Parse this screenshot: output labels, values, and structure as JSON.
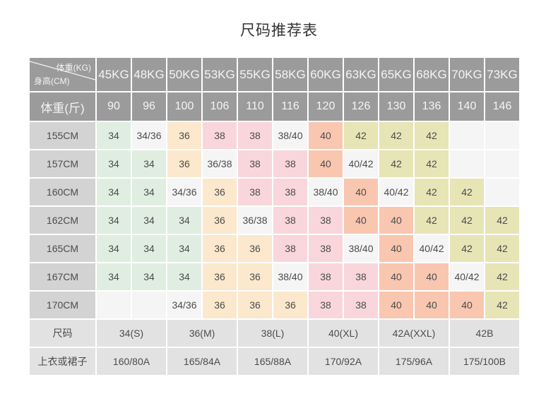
{
  "title": "尺码推荐表",
  "colors": {
    "title_text": "#333333",
    "header_bg": "#9b9b9b",
    "header_text": "#f4f4f4",
    "row_label_bg": "#d3d3d3",
    "footer_bg": "#e2e2e2",
    "cell_text": "#4c4c4c",
    "green": "#dfeee1",
    "cream": "#fbe8cd",
    "pink": "#f9d6dc",
    "salmon": "#f9c6b0",
    "khaki": "#e7e4b6",
    "plain": "#f5f5f5"
  },
  "chart_data": {
    "type": "table",
    "title": "尺码推荐表",
    "corner_top": "体重(KG)",
    "corner_bottom": "身高(CM)",
    "weight_jin_label": "体重(斤)",
    "columns_kg": [
      "45KG",
      "48KG",
      "50KG",
      "53KG",
      "55KG",
      "58KG",
      "60KG",
      "63KG",
      "65KG",
      "68KG",
      "70KG",
      "73KG"
    ],
    "columns_jin": [
      "90",
      "96",
      "100",
      "106",
      "110",
      "116",
      "120",
      "126",
      "130",
      "136",
      "140",
      "146"
    ],
    "rows": [
      {
        "label": "155CM",
        "cells": [
          {
            "v": "34",
            "c": "green"
          },
          {
            "v": "34/36",
            "c": "plain"
          },
          {
            "v": "36",
            "c": "cream"
          },
          {
            "v": "38",
            "c": "pink"
          },
          {
            "v": "38",
            "c": "pink"
          },
          {
            "v": "38/40",
            "c": "plain"
          },
          {
            "v": "40",
            "c": "salmon"
          },
          {
            "v": "42",
            "c": "khaki"
          },
          {
            "v": "42",
            "c": "khaki"
          },
          {
            "v": "42",
            "c": "khaki"
          },
          {
            "v": "",
            "c": "plain"
          },
          {
            "v": "",
            "c": "plain"
          }
        ]
      },
      {
        "label": "157CM",
        "cells": [
          {
            "v": "34",
            "c": "green"
          },
          {
            "v": "34",
            "c": "green"
          },
          {
            "v": "36",
            "c": "cream"
          },
          {
            "v": "36/38",
            "c": "plain"
          },
          {
            "v": "38",
            "c": "pink"
          },
          {
            "v": "38",
            "c": "pink"
          },
          {
            "v": "40",
            "c": "salmon"
          },
          {
            "v": "40/42",
            "c": "plain"
          },
          {
            "v": "42",
            "c": "khaki"
          },
          {
            "v": "42",
            "c": "khaki"
          },
          {
            "v": "",
            "c": "plain"
          },
          {
            "v": "",
            "c": "plain"
          }
        ]
      },
      {
        "label": "160CM",
        "cells": [
          {
            "v": "34",
            "c": "green"
          },
          {
            "v": "34",
            "c": "green"
          },
          {
            "v": "34/36",
            "c": "plain"
          },
          {
            "v": "36",
            "c": "cream"
          },
          {
            "v": "38",
            "c": "pink"
          },
          {
            "v": "38",
            "c": "pink"
          },
          {
            "v": "38/40",
            "c": "plain"
          },
          {
            "v": "40",
            "c": "salmon"
          },
          {
            "v": "40/42",
            "c": "plain"
          },
          {
            "v": "42",
            "c": "khaki"
          },
          {
            "v": "42",
            "c": "khaki"
          },
          {
            "v": "",
            "c": "plain"
          }
        ]
      },
      {
        "label": "162CM",
        "cells": [
          {
            "v": "34",
            "c": "green"
          },
          {
            "v": "34",
            "c": "green"
          },
          {
            "v": "34",
            "c": "green"
          },
          {
            "v": "36",
            "c": "cream"
          },
          {
            "v": "36/38",
            "c": "plain"
          },
          {
            "v": "38",
            "c": "pink"
          },
          {
            "v": "38",
            "c": "pink"
          },
          {
            "v": "40",
            "c": "salmon"
          },
          {
            "v": "40",
            "c": "salmon"
          },
          {
            "v": "42",
            "c": "khaki"
          },
          {
            "v": "42",
            "c": "khaki"
          },
          {
            "v": "42",
            "c": "khaki"
          }
        ]
      },
      {
        "label": "165CM",
        "cells": [
          {
            "v": "34",
            "c": "green"
          },
          {
            "v": "34",
            "c": "green"
          },
          {
            "v": "34",
            "c": "green"
          },
          {
            "v": "36",
            "c": "cream"
          },
          {
            "v": "36",
            "c": "cream"
          },
          {
            "v": "38",
            "c": "pink"
          },
          {
            "v": "38",
            "c": "pink"
          },
          {
            "v": "38/40",
            "c": "plain"
          },
          {
            "v": "40",
            "c": "salmon"
          },
          {
            "v": "40/42",
            "c": "plain"
          },
          {
            "v": "42",
            "c": "khaki"
          },
          {
            "v": "42",
            "c": "khaki"
          }
        ]
      },
      {
        "label": "167CM",
        "cells": [
          {
            "v": "34",
            "c": "green"
          },
          {
            "v": "34",
            "c": "green"
          },
          {
            "v": "34",
            "c": "green"
          },
          {
            "v": "36",
            "c": "cream"
          },
          {
            "v": "36",
            "c": "cream"
          },
          {
            "v": "38/40",
            "c": "plain"
          },
          {
            "v": "38",
            "c": "pink"
          },
          {
            "v": "38",
            "c": "pink"
          },
          {
            "v": "40",
            "c": "salmon"
          },
          {
            "v": "40",
            "c": "salmon"
          },
          {
            "v": "40/42",
            "c": "plain"
          },
          {
            "v": "42",
            "c": "khaki"
          }
        ]
      },
      {
        "label": "170CM",
        "cells": [
          {
            "v": "",
            "c": "plain"
          },
          {
            "v": "",
            "c": "plain"
          },
          {
            "v": "34/36",
            "c": "plain"
          },
          {
            "v": "36",
            "c": "cream"
          },
          {
            "v": "36",
            "c": "cream"
          },
          {
            "v": "36",
            "c": "cream"
          },
          {
            "v": "38",
            "c": "pink"
          },
          {
            "v": "38",
            "c": "pink"
          },
          {
            "v": "40",
            "c": "salmon"
          },
          {
            "v": "40",
            "c": "salmon"
          },
          {
            "v": "40",
            "c": "salmon"
          },
          {
            "v": "42",
            "c": "khaki"
          }
        ]
      }
    ],
    "size_row": {
      "label": "尺码",
      "values": [
        "34(S)",
        "36(M)",
        "38(L)",
        "40(XL)",
        "42A(XXL)",
        "42B"
      ]
    },
    "garment_row": {
      "label": "上衣或裙子",
      "values": [
        "160/80A",
        "165/84A",
        "165/88A",
        "170/92A",
        "175/96A",
        "175/100B"
      ]
    }
  }
}
